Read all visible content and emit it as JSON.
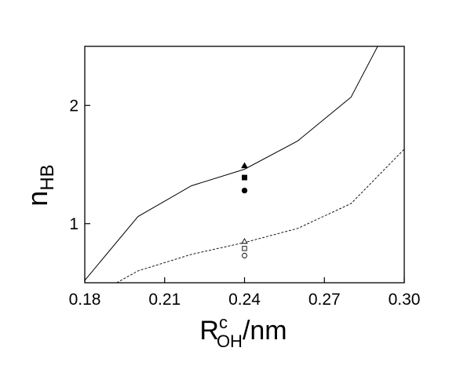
{
  "chart_data": {
    "type": "line",
    "title": "",
    "xlabel": {
      "main": "R",
      "sup": "c",
      "sub": "OH",
      "suffix": "/nm"
    },
    "ylabel": {
      "main": "n",
      "sub": "HB"
    },
    "xlim": [
      0.18,
      0.3
    ],
    "ylim": [
      0.5,
      2.5
    ],
    "x_ticks": [
      0.18,
      0.21,
      0.24,
      0.27,
      0.3
    ],
    "x_tick_labels": [
      "0.18",
      "0.21",
      "0.24",
      "0.27",
      "0.30"
    ],
    "y_ticks": [
      1,
      2
    ],
    "y_tick_labels": [
      "1",
      "2"
    ],
    "grid": false,
    "legend": "none",
    "series": [
      {
        "style": "solid",
        "x": [
          0.18,
          0.2,
          0.22,
          0.24,
          0.26,
          0.28,
          0.29
        ],
        "y": [
          0.52,
          1.06,
          1.32,
          1.46,
          1.7,
          2.07,
          2.5
        ]
      },
      {
        "style": "dashed",
        "x": [
          0.192,
          0.2,
          0.22,
          0.24,
          0.26,
          0.28,
          0.3
        ],
        "y": [
          0.5,
          0.6,
          0.74,
          0.84,
          0.96,
          1.17,
          1.63
        ]
      }
    ],
    "markers": [
      {
        "symbol": "triangle",
        "filled": true,
        "x": 0.24,
        "y": 1.49
      },
      {
        "symbol": "square",
        "filled": true,
        "x": 0.24,
        "y": 1.39
      },
      {
        "symbol": "circle",
        "filled": true,
        "x": 0.24,
        "y": 1.28
      },
      {
        "symbol": "triangle",
        "filled": false,
        "x": 0.24,
        "y": 0.85
      },
      {
        "symbol": "square",
        "filled": false,
        "x": 0.24,
        "y": 0.79
      },
      {
        "symbol": "circle",
        "filled": false,
        "x": 0.24,
        "y": 0.73
      }
    ]
  }
}
